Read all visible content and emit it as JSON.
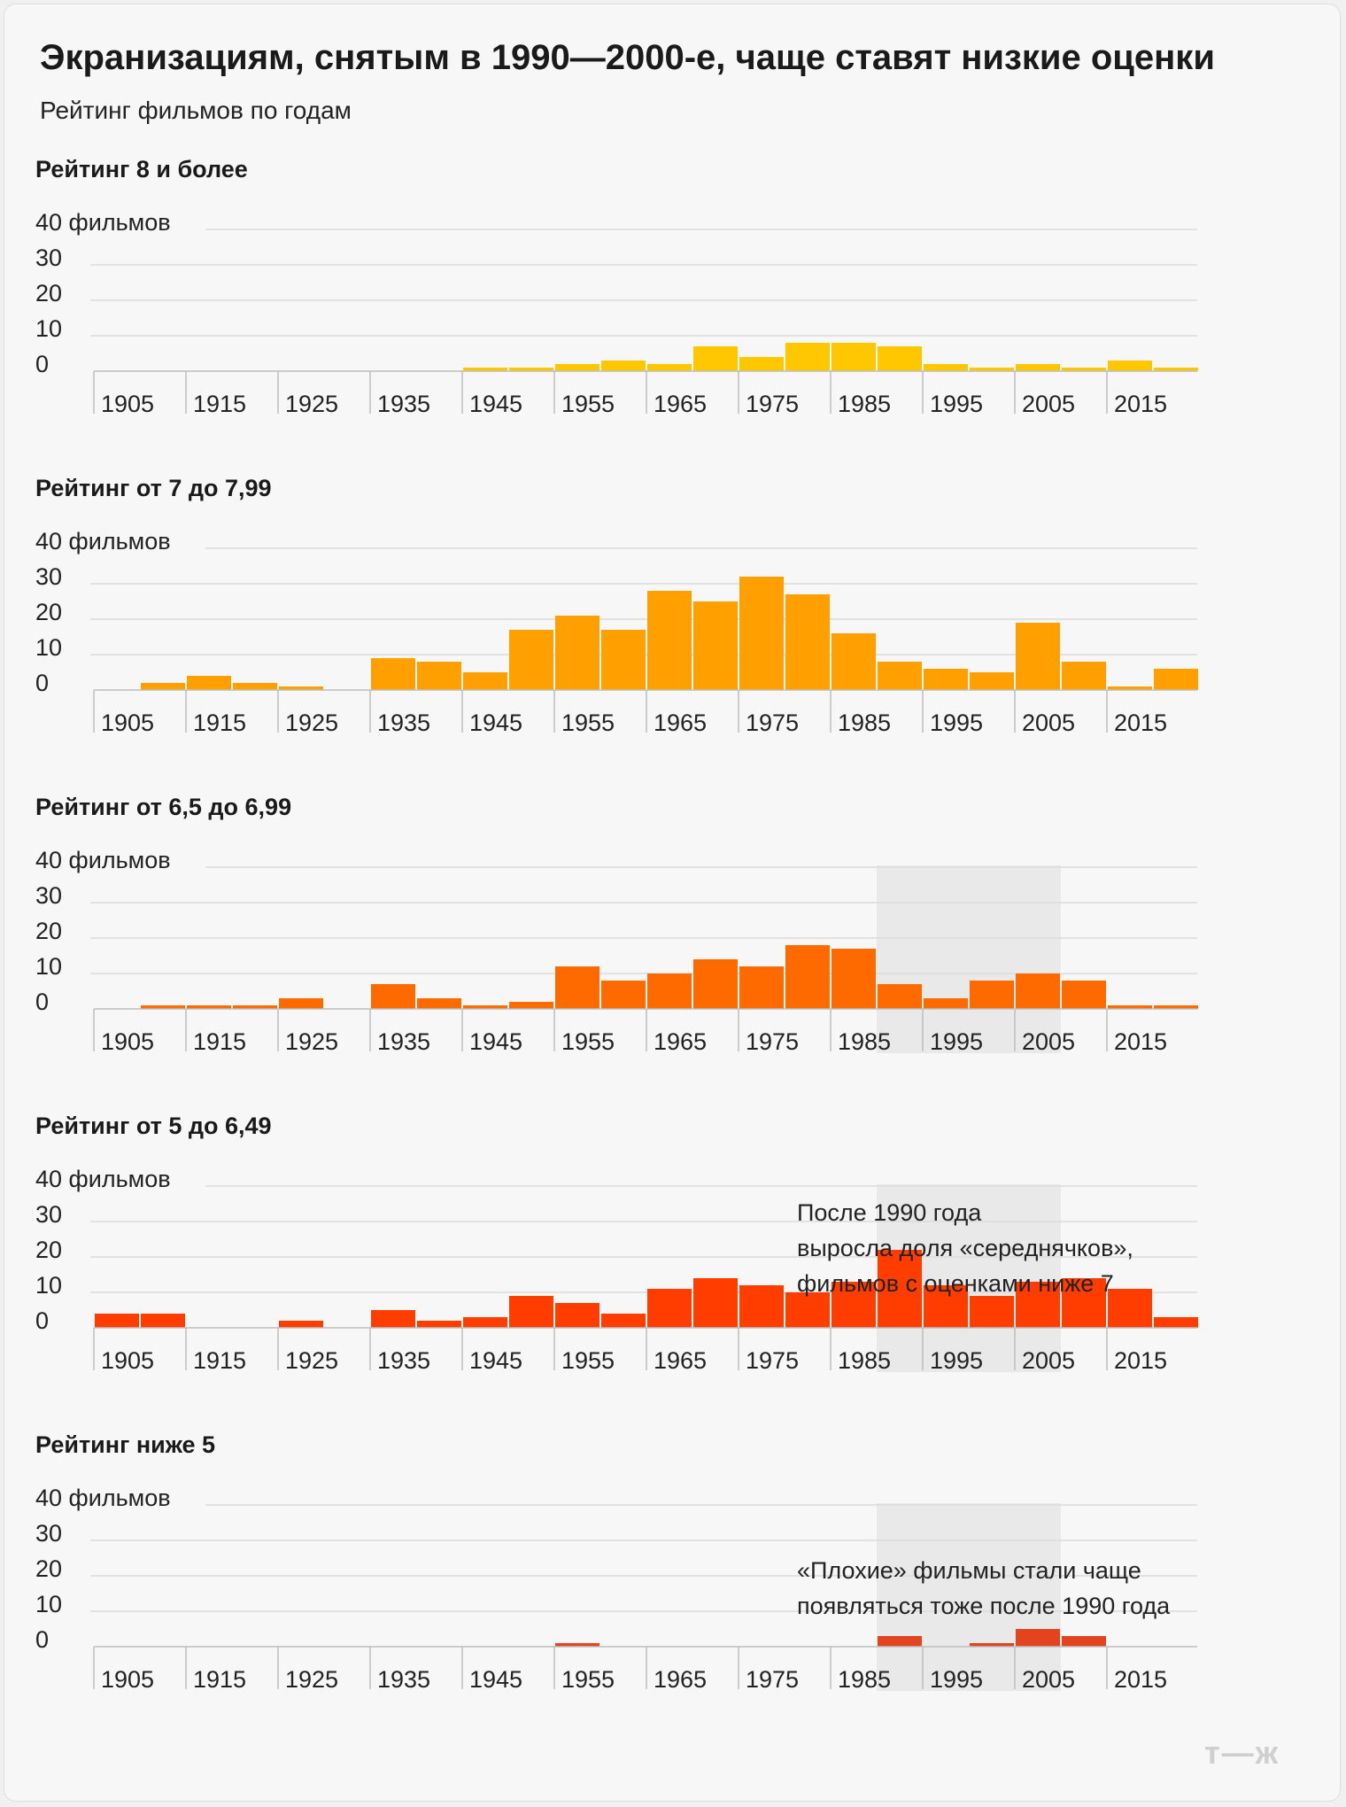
{
  "title": "Экранизациям, снятым в 1990—2000-е, чаще ставят низкие оценки",
  "subtitle": "Рейтинг фильмов по годам",
  "logo": "т—ж",
  "colors": {
    "grid": "#dcdcdc",
    "axis": "#bdbdbd",
    "highlight": "#e9e9e9",
    "text": "#222222"
  },
  "chart_data": [
    {
      "type": "bar",
      "title": "Рейтинг 8 и более",
      "color": "#ffc700",
      "x_start": 1900,
      "bin_width": 5,
      "ylim": [
        0,
        40
      ],
      "y_ticks": [
        {
          "value": 40,
          "label": "40 фильмов"
        },
        {
          "value": 30,
          "label": "30"
        },
        {
          "value": 20,
          "label": "20"
        },
        {
          "value": 10,
          "label": "10"
        },
        {
          "value": 0,
          "label": "0"
        }
      ],
      "x_ticks": [
        "1905",
        "1915",
        "1925",
        "1935",
        "1945",
        "1955",
        "1965",
        "1975",
        "1985",
        "1995",
        "2005",
        "2015"
      ],
      "values": [
        0,
        0,
        0,
        0,
        0,
        0,
        0,
        0,
        1,
        1,
        2,
        3,
        2,
        7,
        4,
        8,
        8,
        7,
        2,
        1,
        2,
        1,
        3,
        1
      ],
      "highlight": null,
      "annotation": null
    },
    {
      "type": "bar",
      "title": "Рейтинг от 7 до 7,99",
      "color": "#ff9f00",
      "x_start": 1900,
      "bin_width": 5,
      "ylim": [
        0,
        40
      ],
      "y_ticks": [
        {
          "value": 40,
          "label": "40 фильмов"
        },
        {
          "value": 30,
          "label": "30"
        },
        {
          "value": 20,
          "label": "20"
        },
        {
          "value": 10,
          "label": "10"
        },
        {
          "value": 0,
          "label": "0"
        }
      ],
      "x_ticks": [
        "1905",
        "1915",
        "1925",
        "1935",
        "1945",
        "1955",
        "1965",
        "1975",
        "1985",
        "1995",
        "2005",
        "2015"
      ],
      "values": [
        0,
        2,
        4,
        2,
        1,
        0,
        9,
        8,
        5,
        17,
        21,
        17,
        28,
        25,
        32,
        27,
        16,
        8,
        6,
        5,
        19,
        8,
        1,
        6
      ],
      "highlight": null,
      "annotation": null
    },
    {
      "type": "bar",
      "title": "Рейтинг от 6,5 до 6,99",
      "color": "#ff6a00",
      "x_start": 1900,
      "bin_width": 5,
      "ylim": [
        0,
        40
      ],
      "y_ticks": [
        {
          "value": 40,
          "label": "40 фильмов"
        },
        {
          "value": 30,
          "label": "30"
        },
        {
          "value": 20,
          "label": "20"
        },
        {
          "value": 10,
          "label": "10"
        },
        {
          "value": 0,
          "label": "0"
        }
      ],
      "x_ticks": [
        "1905",
        "1915",
        "1925",
        "1935",
        "1945",
        "1955",
        "1965",
        "1975",
        "1985",
        "1995",
        "2005",
        "2015"
      ],
      "values": [
        0,
        1,
        1,
        1,
        3,
        0,
        7,
        3,
        1,
        2,
        12,
        8,
        10,
        14,
        12,
        18,
        17,
        7,
        3,
        8,
        10,
        8,
        1,
        1
      ],
      "highlight": [
        1985,
        2005
      ],
      "annotation": null
    },
    {
      "type": "bar",
      "title": "Рейтинг от 5 до 6,49",
      "color": "#ff3d00",
      "x_start": 1900,
      "bin_width": 5,
      "ylim": [
        0,
        40
      ],
      "y_ticks": [
        {
          "value": 40,
          "label": "40 фильмов"
        },
        {
          "value": 30,
          "label": "30"
        },
        {
          "value": 20,
          "label": "20"
        },
        {
          "value": 10,
          "label": "10"
        },
        {
          "value": 0,
          "label": "0"
        }
      ],
      "x_ticks": [
        "1905",
        "1915",
        "1925",
        "1935",
        "1945",
        "1955",
        "1965",
        "1975",
        "1985",
        "1995",
        "2005",
        "2015"
      ],
      "values": [
        4,
        4,
        0,
        0,
        2,
        0,
        5,
        2,
        3,
        9,
        7,
        4,
        11,
        14,
        12,
        10,
        13,
        22,
        12,
        9,
        13,
        14,
        11,
        3
      ],
      "highlight": [
        1985,
        2005
      ],
      "annotation": [
        "После 1990 года",
        "выросла доля «середнячков»,",
        "фильмов с оценками ниже 7"
      ]
    },
    {
      "type": "bar",
      "title": "Рейтинг ниже 5",
      "color": "#e3441f",
      "x_start": 1900,
      "bin_width": 5,
      "ylim": [
        0,
        40
      ],
      "y_ticks": [
        {
          "value": 40,
          "label": "40 фильмов"
        },
        {
          "value": 30,
          "label": "30"
        },
        {
          "value": 20,
          "label": "20"
        },
        {
          "value": 10,
          "label": "10"
        },
        {
          "value": 0,
          "label": "0"
        }
      ],
      "x_ticks": [
        "1905",
        "1915",
        "1925",
        "1935",
        "1945",
        "1955",
        "1965",
        "1975",
        "1985",
        "1995",
        "2005",
        "2015"
      ],
      "values": [
        0,
        0,
        0,
        0,
        0,
        0,
        0,
        0,
        0,
        0,
        1,
        0,
        0,
        0,
        0,
        0,
        0,
        3,
        0,
        1,
        5,
        3,
        0,
        0
      ],
      "highlight": [
        1985,
        2005
      ],
      "annotation": [
        "«Плохие» фильмы стали чаще",
        "появляться тоже после 1990 года"
      ]
    }
  ]
}
